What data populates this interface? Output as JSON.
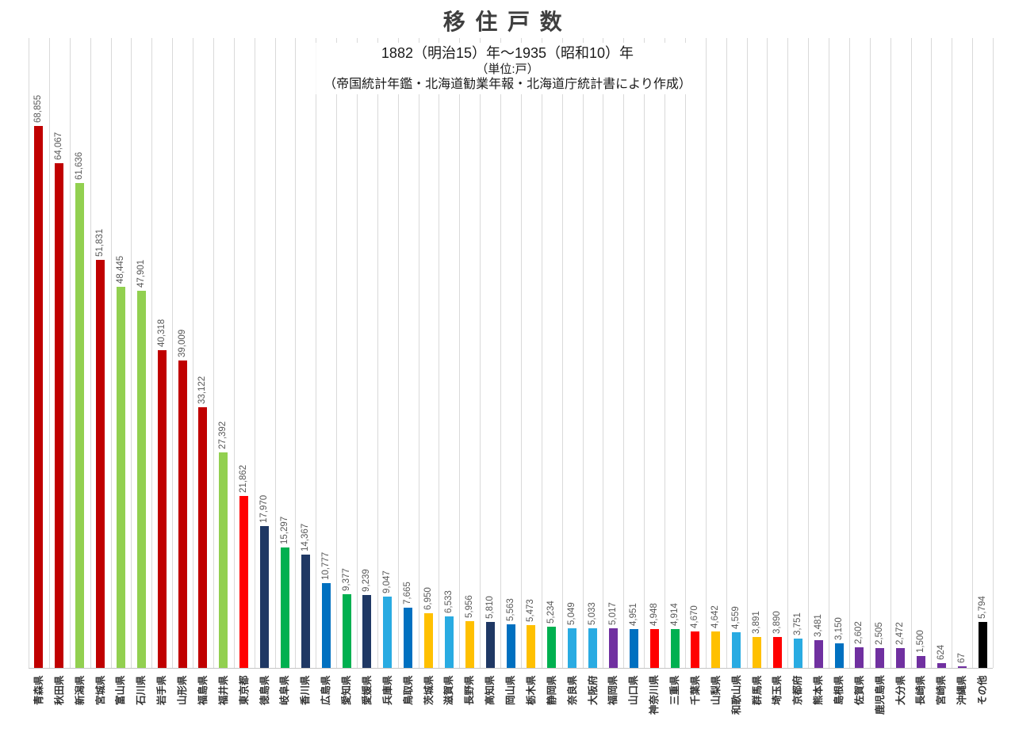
{
  "chart_data": {
    "type": "bar",
    "title": "移住戸数",
    "subtitle_lines": [
      "1882（明治15）年～1935（昭和10）年",
      "（単位:戸）",
      "（帝国統計年鑑・北海道勧業年報・北海道庁統計書により作成）"
    ],
    "unit": "戸",
    "ylim": [
      0,
      80000
    ],
    "grid": "vertical category separators",
    "legend": "none",
    "value_label_style": "rotated 90° above each bar, thousands separators",
    "category_label_style": "rotated 90° below axis",
    "categories": [
      "青森県",
      "秋田県",
      "新潟県",
      "宮城県",
      "富山県",
      "石川県",
      "岩手県",
      "山形県",
      "福島県",
      "福井県",
      "東京都",
      "徳島県",
      "岐阜県",
      "香川県",
      "広島県",
      "愛知県",
      "愛媛県",
      "兵庫県",
      "鳥取県",
      "茨城県",
      "滋賀県",
      "長野県",
      "高知県",
      "岡山県",
      "栃木県",
      "静岡県",
      "奈良県",
      "大阪府",
      "福岡県",
      "山口県",
      "神奈川県",
      "三重県",
      "千葉県",
      "山梨県",
      "和歌山県",
      "群馬県",
      "埼玉県",
      "京都府",
      "熊本県",
      "島根県",
      "佐賀県",
      "鹿児島県",
      "大分県",
      "長崎県",
      "宮崎県",
      "沖縄県",
      "その他"
    ],
    "values": [
      68855,
      64067,
      61636,
      51831,
      48445,
      47901,
      40318,
      39009,
      33122,
      27392,
      21862,
      17970,
      15297,
      14367,
      10777,
      9377,
      9239,
      9047,
      7665,
      6950,
      6533,
      5956,
      5810,
      5563,
      5473,
      5234,
      5049,
      5033,
      5017,
      4951,
      4948,
      4914,
      4670,
      4642,
      4559,
      3891,
      3890,
      3751,
      3481,
      3150,
      2602,
      2505,
      2472,
      1500,
      624,
      67,
      5794
    ],
    "palette": {
      "dark_red": "#C00000",
      "light_green": "#92D050",
      "red": "#FF0000",
      "navy": "#1F3864",
      "green": "#00B050",
      "blue": "#0070C0",
      "sky_blue": "#29ABE2",
      "gold": "#FFC000",
      "purple": "#7030A0",
      "black": "#000000"
    },
    "color_keys": [
      "dark_red",
      "dark_red",
      "light_green",
      "dark_red",
      "light_green",
      "light_green",
      "dark_red",
      "dark_red",
      "dark_red",
      "light_green",
      "red",
      "navy",
      "green",
      "navy",
      "blue",
      "green",
      "navy",
      "sky_blue",
      "blue",
      "gold",
      "sky_blue",
      "gold",
      "navy",
      "blue",
      "gold",
      "green",
      "sky_blue",
      "sky_blue",
      "purple",
      "blue",
      "red",
      "green",
      "red",
      "gold",
      "sky_blue",
      "gold",
      "red",
      "sky_blue",
      "purple",
      "blue",
      "purple",
      "purple",
      "purple",
      "purple",
      "purple",
      "purple",
      "black"
    ],
    "colors": {
      "gridline": "#D9D9D9",
      "axis_line": "#C6C6C6",
      "value_label_text": "#595959",
      "category_label_text": "#333333",
      "title_text": "#3F3F3F"
    }
  }
}
